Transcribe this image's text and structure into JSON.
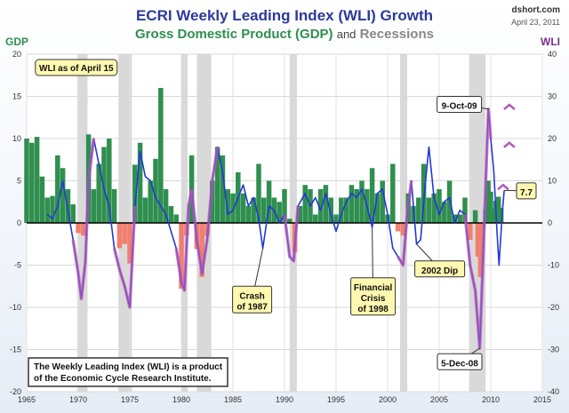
{
  "header": {
    "title": "ECRI Weekly Leading Index (WLI) Growth",
    "subtitle_gdp": "Gross Domestic Product (GDP)",
    "subtitle_and": "and",
    "subtitle_rec": "Recessions",
    "site": "dshort.com",
    "date": "April 23, 2011"
  },
  "chart_data": {
    "type": "bar",
    "title": "ECRI Weekly Leading Index (WLI) Growth",
    "left_axis": {
      "label": "GDP",
      "range": [
        -20,
        20
      ],
      "ticks": [
        20,
        15,
        10,
        5,
        0,
        -5,
        -10,
        -15,
        -20
      ],
      "color": "#2f8f4f"
    },
    "right_axis": {
      "label": "WLI",
      "range": [
        -40,
        40
      ],
      "ticks": [
        40,
        30,
        20,
        10,
        0,
        -10,
        -20,
        -30,
        -40
      ],
      "color": "#7a2e8f"
    },
    "x_axis": {
      "range": [
        1965,
        2015
      ],
      "ticks": [
        1965,
        1970,
        1975,
        1980,
        1985,
        1990,
        1995,
        2000,
        2005,
        2010,
        2015
      ]
    },
    "recessions": [
      [
        1969.9,
        1970.9
      ],
      [
        1973.9,
        1975.2
      ],
      [
        1980.0,
        1980.6
      ],
      [
        1981.5,
        1982.9
      ],
      [
        1990.5,
        1991.2
      ],
      [
        2001.2,
        2001.9
      ],
      [
        2007.9,
        2009.5
      ]
    ],
    "gdp_series": {
      "name": "GDP",
      "positive_color": "#2f8f4f",
      "negative_color": "#f07f6f",
      "points": [
        [
          1965.0,
          10.0
        ],
        [
          1965.5,
          9.5
        ],
        [
          1966.0,
          10.2
        ],
        [
          1966.5,
          5.5
        ],
        [
          1967.0,
          3.0
        ],
        [
          1967.5,
          3.2
        ],
        [
          1968.0,
          8.0
        ],
        [
          1968.5,
          6.5
        ],
        [
          1969.0,
          4.0
        ],
        [
          1969.5,
          2.2
        ],
        [
          1970.0,
          -1.2
        ],
        [
          1970.5,
          -1.5
        ],
        [
          1971.0,
          10.5
        ],
        [
          1971.5,
          4.0
        ],
        [
          1972.0,
          7.0
        ],
        [
          1972.5,
          9.0
        ],
        [
          1973.0,
          10.0
        ],
        [
          1973.5,
          4.0
        ],
        [
          1974.0,
          -3.0
        ],
        [
          1974.5,
          -2.5
        ],
        [
          1975.0,
          -4.8
        ],
        [
          1975.5,
          6.9
        ],
        [
          1976.0,
          9.5
        ],
        [
          1976.5,
          3.0
        ],
        [
          1977.0,
          5.0
        ],
        [
          1977.5,
          7.6
        ],
        [
          1978.0,
          16.0
        ],
        [
          1978.5,
          4.0
        ],
        [
          1979.0,
          2.0
        ],
        [
          1979.5,
          1.0
        ],
        [
          1980.0,
          -7.8
        ],
        [
          1980.5,
          -1.5
        ],
        [
          1981.0,
          8.0
        ],
        [
          1981.5,
          -3.1
        ],
        [
          1982.0,
          -6.4
        ],
        [
          1982.5,
          -1.5
        ],
        [
          1983.0,
          5.0
        ],
        [
          1983.5,
          9.0
        ],
        [
          1984.0,
          8.0
        ],
        [
          1984.5,
          4.0
        ],
        [
          1985.0,
          3.5
        ],
        [
          1985.5,
          6.0
        ],
        [
          1986.0,
          3.5
        ],
        [
          1986.5,
          2.0
        ],
        [
          1987.0,
          3.0
        ],
        [
          1987.5,
          7.0
        ],
        [
          1988.0,
          3.0
        ],
        [
          1988.5,
          5.0
        ],
        [
          1989.0,
          3.0
        ],
        [
          1989.5,
          2.5
        ],
        [
          1990.0,
          4.0
        ],
        [
          1990.5,
          0.5
        ],
        [
          1991.0,
          -3.5
        ],
        [
          1991.5,
          2.0
        ],
        [
          1992.0,
          4.5
        ],
        [
          1992.5,
          4.0
        ],
        [
          1993.0,
          1.0
        ],
        [
          1993.5,
          4.0
        ],
        [
          1994.0,
          4.5
        ],
        [
          1994.5,
          3.0
        ],
        [
          1995.0,
          1.0
        ],
        [
          1995.5,
          3.0
        ],
        [
          1996.0,
          3.0
        ],
        [
          1996.5,
          4.5
        ],
        [
          1997.0,
          4.0
        ],
        [
          1997.5,
          5.0
        ],
        [
          1998.0,
          4.0
        ],
        [
          1998.5,
          6.5
        ],
        [
          1999.0,
          3.5
        ],
        [
          1999.5,
          5.0
        ],
        [
          2000.0,
          1.0
        ],
        [
          2000.5,
          7.0
        ],
        [
          2001.0,
          -1.0
        ],
        [
          2001.5,
          -1.5
        ],
        [
          2002.0,
          3.5
        ],
        [
          2002.5,
          2.0
        ],
        [
          2003.0,
          3.0
        ],
        [
          2003.5,
          7.0
        ],
        [
          2004.0,
          3.0
        ],
        [
          2004.5,
          3.5
        ],
        [
          2005.0,
          4.0
        ],
        [
          2005.5,
          2.5
        ],
        [
          2006.0,
          5.0
        ],
        [
          2006.5,
          1.0
        ],
        [
          2007.0,
          1.0
        ],
        [
          2007.5,
          3.0
        ],
        [
          2008.0,
          -2.0
        ],
        [
          2008.5,
          1.5
        ],
        [
          2008.75,
          -4.0
        ],
        [
          2009.0,
          -6.4
        ],
        [
          2009.25,
          -0.7
        ],
        [
          2009.5,
          1.6
        ],
        [
          2009.75,
          5.0
        ],
        [
          2010.0,
          3.7
        ],
        [
          2010.25,
          1.7
        ],
        [
          2010.5,
          2.6
        ],
        [
          2010.75,
          3.1
        ],
        [
          2011.0,
          1.8
        ]
      ]
    },
    "wli_series": {
      "name": "WLI",
      "color": "#2437d6",
      "recession_color": "#b35ab8",
      "points": [
        [
          1967.0,
          2.0
        ],
        [
          1967.5,
          1.0
        ],
        [
          1968.0,
          4.0
        ],
        [
          1968.5,
          10.0
        ],
        [
          1969.0,
          3.0
        ],
        [
          1969.5,
          -4.0
        ],
        [
          1970.0,
          -12.0
        ],
        [
          1970.3,
          -18.0
        ],
        [
          1970.7,
          -9.0
        ],
        [
          1971.0,
          10.0
        ],
        [
          1971.5,
          20.0
        ],
        [
          1972.0,
          14.0
        ],
        [
          1972.5,
          8.0
        ],
        [
          1973.0,
          4.0
        ],
        [
          1973.5,
          -6.0
        ],
        [
          1974.0,
          -11.0
        ],
        [
          1974.5,
          -15.0
        ],
        [
          1975.0,
          -20.0
        ],
        [
          1975.5,
          4.0
        ],
        [
          1976.0,
          17.0
        ],
        [
          1976.5,
          11.0
        ],
        [
          1977.0,
          10.0
        ],
        [
          1977.5,
          6.0
        ],
        [
          1978.0,
          4.0
        ],
        [
          1978.5,
          2.0
        ],
        [
          1979.0,
          -2.0
        ],
        [
          1979.5,
          -6.0
        ],
        [
          1980.0,
          -14.0
        ],
        [
          1980.3,
          -16.0
        ],
        [
          1980.7,
          4.0
        ],
        [
          1981.0,
          8.0
        ],
        [
          1981.5,
          -4.0
        ],
        [
          1982.0,
          -12.0
        ],
        [
          1982.5,
          -4.0
        ],
        [
          1983.0,
          10.0
        ],
        [
          1983.5,
          18.0
        ],
        [
          1984.0,
          12.0
        ],
        [
          1984.5,
          2.0
        ],
        [
          1985.0,
          3.0
        ],
        [
          1985.5,
          6.0
        ],
        [
          1986.0,
          9.0
        ],
        [
          1986.5,
          4.0
        ],
        [
          1987.0,
          6.0
        ],
        [
          1987.5,
          1.0
        ],
        [
          1987.9,
          -6.0
        ],
        [
          1988.5,
          4.0
        ],
        [
          1989.0,
          3.0
        ],
        [
          1989.5,
          0.0
        ],
        [
          1990.0,
          2.0
        ],
        [
          1990.5,
          -8.0
        ],
        [
          1990.9,
          -9.0
        ],
        [
          1991.3,
          4.0
        ],
        [
          1992.0,
          7.0
        ],
        [
          1992.5,
          4.0
        ],
        [
          1993.0,
          6.0
        ],
        [
          1993.5,
          3.0
        ],
        [
          1994.0,
          7.0
        ],
        [
          1994.5,
          2.0
        ],
        [
          1995.0,
          -2.0
        ],
        [
          1995.5,
          2.0
        ],
        [
          1996.0,
          5.0
        ],
        [
          1996.5,
          7.0
        ],
        [
          1997.0,
          6.0
        ],
        [
          1997.5,
          8.0
        ],
        [
          1998.0,
          4.0
        ],
        [
          1998.5,
          -1.0
        ],
        [
          1999.0,
          7.0
        ],
        [
          1999.5,
          8.0
        ],
        [
          2000.0,
          2.0
        ],
        [
          2000.5,
          -6.0
        ],
        [
          2001.0,
          -8.0
        ],
        [
          2001.5,
          -10.0
        ],
        [
          2001.9,
          2.0
        ],
        [
          2002.3,
          10.0
        ],
        [
          2002.8,
          -5.0
        ],
        [
          2003.2,
          -4.0
        ],
        [
          2003.6,
          8.0
        ],
        [
          2004.0,
          18.0
        ],
        [
          2004.5,
          6.0
        ],
        [
          2005.0,
          2.0
        ],
        [
          2005.5,
          5.0
        ],
        [
          2006.0,
          6.0
        ],
        [
          2006.5,
          0.0
        ],
        [
          2007.0,
          3.0
        ],
        [
          2007.5,
          2.0
        ],
        [
          2008.0,
          -10.0
        ],
        [
          2008.5,
          -16.0
        ],
        [
          2008.93,
          -29.7
        ],
        [
          2009.3,
          -5.0
        ],
        [
          2009.77,
          27.0
        ],
        [
          2010.0,
          20.0
        ],
        [
          2010.3,
          12.0
        ],
        [
          2010.6,
          -2.0
        ],
        [
          2010.8,
          -10.0
        ],
        [
          2011.1,
          2.0
        ],
        [
          2011.3,
          7.7
        ]
      ]
    },
    "annotations": [
      {
        "id": "crash-1987",
        "lines": [
          "Crash",
          "of 1987"
        ],
        "x": 1987.9,
        "y_wli": -6.0
      },
      {
        "id": "financial-crisis-1998",
        "lines": [
          "Financial",
          "Crisis",
          "of 1998"
        ],
        "x": 1998.5,
        "y_wli": -1.0
      },
      {
        "id": "dip-2002",
        "lines": [
          "2002 Dip"
        ],
        "x": 2002.8,
        "y_wli": -5.0
      },
      {
        "id": "peak-2009",
        "lines": [
          "9-Oct-09"
        ],
        "x": 2009.77,
        "y_wli": 27.0
      },
      {
        "id": "trough-2008",
        "lines": [
          "5-Dec-08"
        ],
        "x": 2008.93,
        "y_wli": -29.7
      },
      {
        "id": "latest",
        "lines": [
          "7.7"
        ],
        "x": 2011.3,
        "y_wli": 7.7
      }
    ],
    "carets": [
      {
        "x": 2011.8,
        "y_wli": 28.0
      },
      {
        "x": 2011.8,
        "y_wli": 19.0
      },
      {
        "x": 2011.2,
        "y_wli": 9.0
      }
    ],
    "label_asof": "WLI as of April 15",
    "note_lines": [
      "The Weekly Leading Index (WLI) is a product",
      "of the Economic Cycle Research Institute."
    ]
  }
}
